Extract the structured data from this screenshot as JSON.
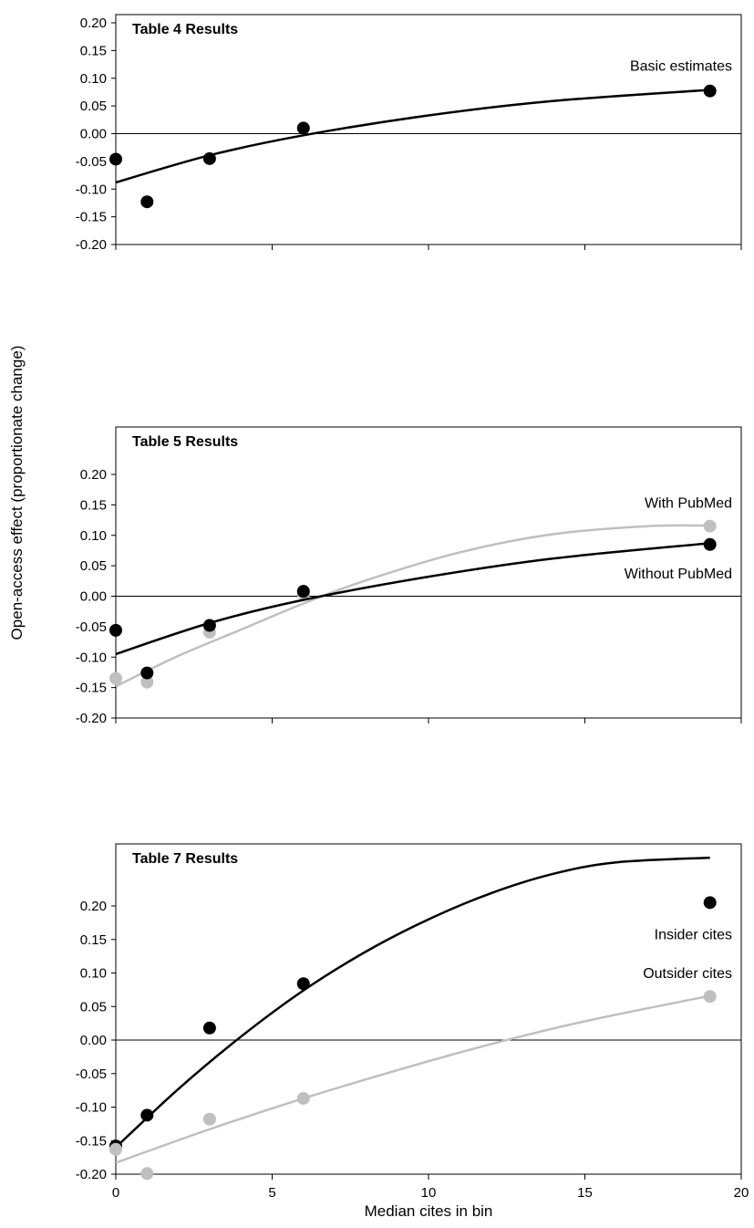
{
  "y_axis_label": "Open-access  effect (proportionate change)",
  "x_axis_label": "Median cites in bin",
  "chart_data": [
    {
      "type": "scatter",
      "title": "Table 4 Results",
      "xlim": [
        0,
        20
      ],
      "ylim": [
        -0.2,
        0.2
      ],
      "yticks": [
        "0.20",
        "0.15",
        "0.10",
        "0.05",
        "0.00",
        "-0.05",
        "-0.10",
        "-0.15",
        "-0.20"
      ],
      "xticks": [],
      "zero_line": true,
      "series": [
        {
          "name": "Basic estimates",
          "color": "#000000",
          "x": [
            0,
            1,
            3,
            6,
            19
          ],
          "y": [
            -0.046,
            -0.123,
            -0.045,
            0.01,
            0.077
          ],
          "fit": {
            "x": [
              0,
              3,
              6,
              10,
              14,
              19
            ],
            "y": [
              -0.088,
              -0.039,
              -0.003,
              0.033,
              0.059,
              0.079
            ]
          }
        }
      ]
    },
    {
      "type": "scatter",
      "title": "Table 5 Results",
      "xlim": [
        0,
        20
      ],
      "ylim": [
        -0.2,
        0.2
      ],
      "yticks": [
        "0.20",
        "0.15",
        "0.10",
        "0.05",
        "0.00",
        "-0.05",
        "-0.10",
        "-0.15",
        "-0.20"
      ],
      "xticks": [],
      "zero_line": true,
      "series": [
        {
          "name": "With PubMed",
          "color": "#bfbfbf",
          "x": [
            0,
            1,
            3,
            6,
            19
          ],
          "y": [
            -0.135,
            -0.141,
            -0.059,
            0.004,
            0.115
          ],
          "fit": {
            "x": [
              0,
              2,
              4,
              6,
              8,
              11,
              14,
              17,
              19
            ],
            "y": [
              -0.148,
              -0.098,
              -0.055,
              -0.012,
              0.026,
              0.072,
              0.102,
              0.115,
              0.116
            ]
          }
        },
        {
          "name": "Without PubMed",
          "color": "#000000",
          "x": [
            0,
            1,
            3,
            6,
            19
          ],
          "y": [
            -0.056,
            -0.126,
            -0.048,
            0.008,
            0.085
          ],
          "fit": {
            "x": [
              0,
              3,
              6,
              10,
              14,
              19
            ],
            "y": [
              -0.095,
              -0.044,
              -0.006,
              0.032,
              0.062,
              0.087
            ]
          }
        }
      ]
    },
    {
      "type": "scatter",
      "title": "Table 7 Results",
      "xlim": [
        0,
        20
      ],
      "ylim": [
        -0.2,
        0.22
      ],
      "yticks": [
        "0.20",
        "0.15",
        "0.10",
        "0.05",
        "0.00",
        "-0.05",
        "-0.10",
        "-0.15",
        "-0.20"
      ],
      "xticks": [
        "0",
        "5",
        "10",
        "15",
        "20"
      ],
      "zero_line": true,
      "series": [
        {
          "name": "Insider cites",
          "color": "#000000",
          "x": [
            0,
            1,
            3,
            6,
            19
          ],
          "y": [
            -0.158,
            -0.112,
            0.018,
            0.084,
            0.205
          ],
          "fit": {
            "x": [
              0,
              2,
              4,
              6,
              8,
              10,
              12,
              14,
              16,
              19
            ],
            "y": [
              -0.16,
              -0.073,
              0.005,
              0.074,
              0.132,
              0.18,
              0.219,
              0.248,
              0.265,
              0.272
            ]
          }
        },
        {
          "name": "Outsider cites",
          "color": "#bfbfbf",
          "x": [
            0,
            1,
            3,
            6,
            19
          ],
          "y": [
            -0.163,
            -0.199,
            -0.118,
            -0.087,
            0.065
          ],
          "fit": {
            "x": [
              0,
              3,
              6,
              9,
              12,
              15,
              19
            ],
            "y": [
              -0.183,
              -0.133,
              -0.087,
              -0.045,
              -0.006,
              0.028,
              0.066
            ]
          }
        }
      ]
    }
  ]
}
